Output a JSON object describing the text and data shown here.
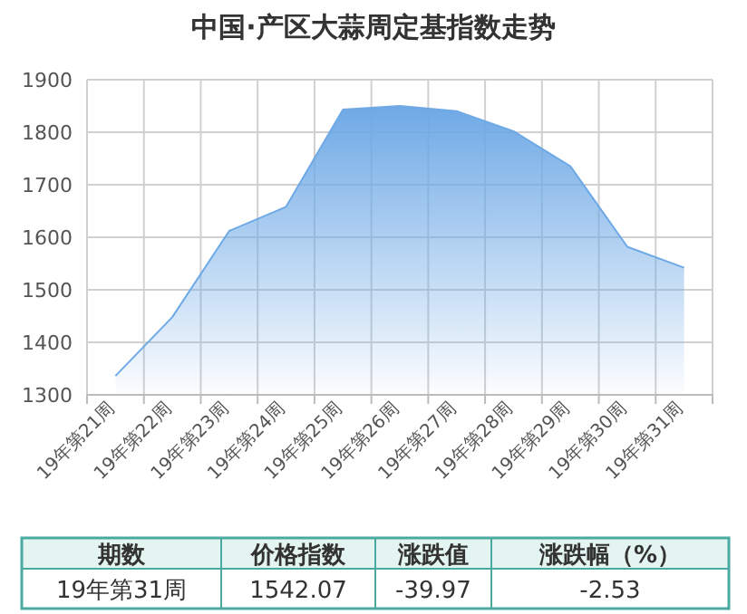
{
  "chart_data": {
    "type": "area",
    "title": "中国·产区大蒜周定基指数走势",
    "categories": [
      "19年第21周",
      "19年第22周",
      "19年第23周",
      "19年第24周",
      "19年第25周",
      "19年第26周",
      "19年第27周",
      "19年第28周",
      "19年第29周",
      "19年第30周",
      "19年第31周"
    ],
    "values": [
      1336,
      1448,
      1612,
      1658,
      1843,
      1850,
      1840,
      1802,
      1735,
      1582,
      1542.07
    ],
    "color": "#6ea9e6",
    "ylim": [
      1300,
      1900
    ],
    "yticks": [
      1300,
      1400,
      1500,
      1600,
      1700,
      1800,
      1900
    ],
    "grid": true,
    "annotations": [
      "期数",
      "价格指数",
      "涨跌值",
      "涨跌幅（%）",
      "19年第31周",
      "1542.07",
      "-39.97",
      "-2.53"
    ]
  }
}
